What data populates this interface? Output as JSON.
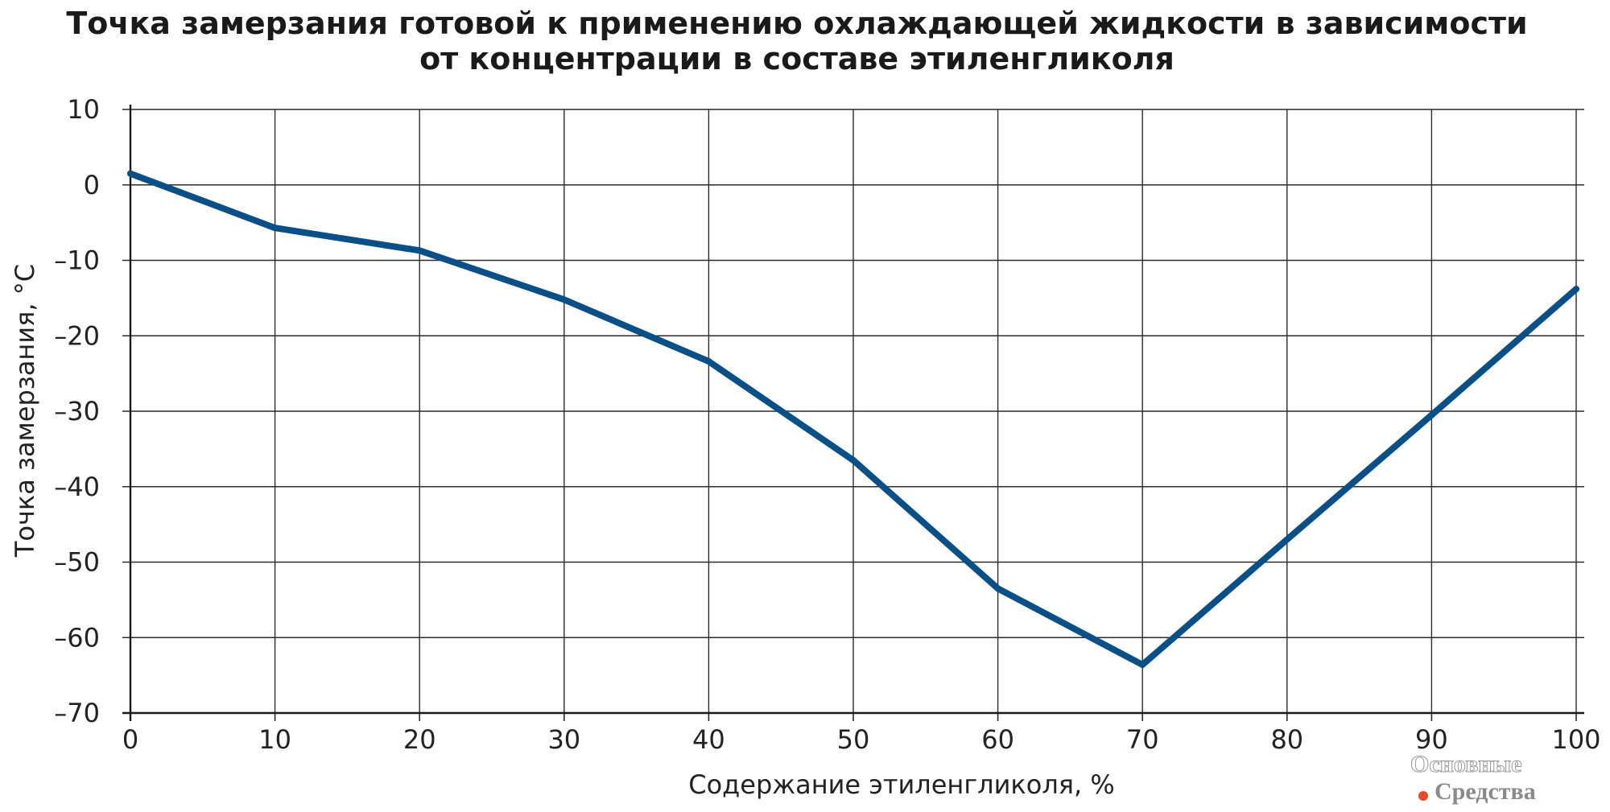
{
  "chart_data": {
    "type": "line",
    "title": "Точка замерзания готовой к применению охлаждающей жидкости в зависимости от концентрации в составе этиленгликоля",
    "title_lines": [
      "Точка замерзания готовой к применению охлаждающей жидкости в зависимости",
      "от концентрации в составе этиленгликоля"
    ],
    "xlabel": "Содержание этиленгликоля, %",
    "ylabel": "Точка замерзания, °C",
    "xlim": [
      0,
      100
    ],
    "ylim": [
      -70,
      10
    ],
    "x_ticks": [
      0,
      10,
      20,
      30,
      40,
      50,
      60,
      70,
      80,
      90,
      100
    ],
    "y_ticks": [
      10,
      0,
      -10,
      -20,
      -30,
      -40,
      -50,
      -60,
      -70
    ],
    "x_tick_labels": [
      "0",
      "10",
      "20",
      "30",
      "40",
      "50",
      "60",
      "70",
      "80",
      "90",
      "100"
    ],
    "y_tick_labels": [
      "10",
      "0",
      "–10",
      "–20",
      "–30",
      "–40",
      "–50",
      "–60",
      "–70"
    ],
    "grid": true,
    "line_color": "#0b4f87",
    "series": [
      {
        "x": [
          0,
          10,
          20,
          30,
          40,
          50,
          60,
          70,
          80,
          90,
          100
        ],
        "y": [
          1.5,
          -5.7,
          -8.7,
          -15.2,
          -23.4,
          -36.5,
          -53.5,
          -63.6,
          -47.0,
          -30.5,
          -13.8
        ]
      }
    ]
  },
  "watermark": {
    "line1": "Основные",
    "line2": "Средства",
    "dot_color": "#e64a2e"
  }
}
